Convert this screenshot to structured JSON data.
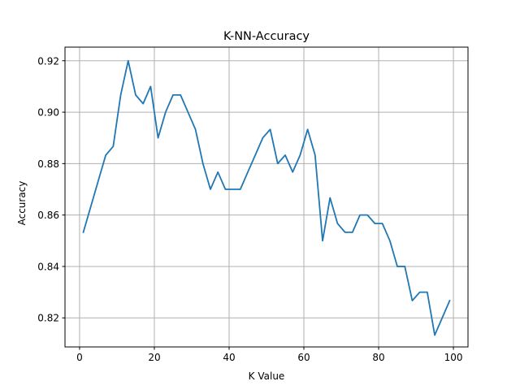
{
  "chart_data": {
    "type": "line",
    "title": "K-NN-Accuracy",
    "xlabel": "K Value",
    "ylabel": "Accuracy",
    "xlim": [
      -3.9,
      103.9
    ],
    "ylim": [
      0.8087,
      0.9253
    ],
    "xticks": [
      0,
      20,
      40,
      60,
      80,
      100
    ],
    "yticks": [
      0.82,
      0.84,
      0.86,
      0.88,
      0.9,
      0.92
    ],
    "xtick_labels": [
      "0",
      "20",
      "40",
      "60",
      "80",
      "100"
    ],
    "ytick_labels": [
      "0.82",
      "0.84",
      "0.86",
      "0.88",
      "0.90",
      "0.92"
    ],
    "grid": true,
    "series": [
      {
        "color": "#1f77b4",
        "x": [
          1,
          3,
          5,
          7,
          9,
          11,
          13,
          15,
          17,
          19,
          21,
          23,
          25,
          27,
          29,
          31,
          33,
          35,
          37,
          39,
          41,
          43,
          45,
          47,
          49,
          51,
          53,
          55,
          57,
          59,
          61,
          63,
          65,
          67,
          69,
          71,
          73,
          75,
          77,
          79,
          81,
          83,
          85,
          87,
          89,
          91,
          93,
          95,
          97,
          99
        ],
        "y": [
          0.8533,
          0.8633,
          0.8733,
          0.8833,
          0.8867,
          0.9067,
          0.92,
          0.9067,
          0.9033,
          0.91,
          0.89,
          0.9,
          0.9067,
          0.9067,
          0.9,
          0.8933,
          0.88,
          0.87,
          0.8767,
          0.87,
          0.87,
          0.87,
          0.8767,
          0.8833,
          0.89,
          0.8933,
          0.88,
          0.8833,
          0.8767,
          0.8833,
          0.8933,
          0.8833,
          0.85,
          0.8667,
          0.8567,
          0.8533,
          0.8533,
          0.86,
          0.86,
          0.8567,
          0.8567,
          0.85,
          0.84,
          0.84,
          0.8267,
          0.83,
          0.83,
          0.8133,
          0.82,
          0.8267
        ]
      }
    ]
  }
}
